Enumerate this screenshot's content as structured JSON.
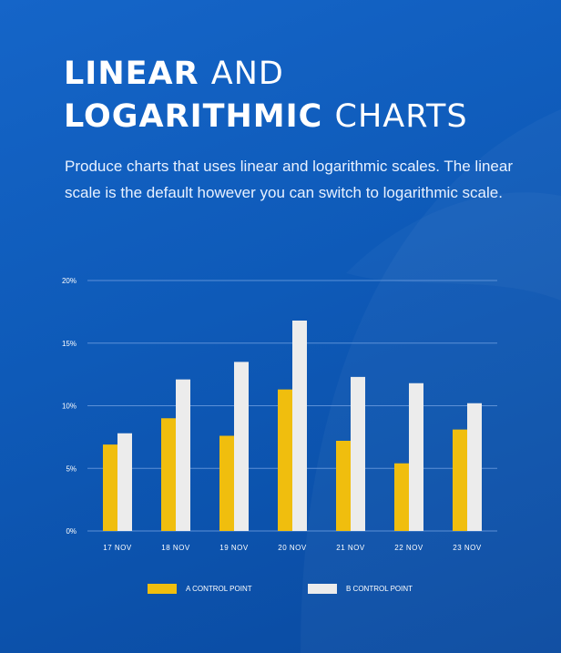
{
  "header": {
    "title_line1_bold": "LINEAR",
    "title_line1_light": "AND",
    "title_line2_bold": "LOGARITHMIC",
    "title_line2_light": "CHARTS",
    "description": "Produce charts that uses linear and logarithmic scales. The linear scale is the default however you can switch to logarithmic scale."
  },
  "colors": {
    "background": "#1565c8",
    "series_a": "#f0be0e",
    "series_b": "#ececec",
    "gridline": "#6f9fe0"
  },
  "chart_data": {
    "type": "bar",
    "categories": [
      "17 NOV",
      "18 NOV",
      "19 NOV",
      "20 NOV",
      "21 NOV",
      "22 NOV",
      "23 NOV"
    ],
    "series": [
      {
        "name": "A CONTROL POINT",
        "values": [
          6.9,
          9.0,
          7.6,
          11.3,
          7.2,
          5.4,
          8.1
        ],
        "color": "#f0be0e"
      },
      {
        "name": "B CONTROL POINT",
        "values": [
          7.8,
          12.1,
          13.5,
          16.8,
          12.3,
          11.8,
          10.2
        ],
        "color": "#ececec"
      }
    ],
    "yticks": [
      "0%",
      "5%",
      "10%",
      "15%",
      "20%"
    ],
    "ylim": [
      0,
      20
    ],
    "grid": true,
    "legend_position": "bottom",
    "xlabel": "",
    "ylabel": ""
  }
}
